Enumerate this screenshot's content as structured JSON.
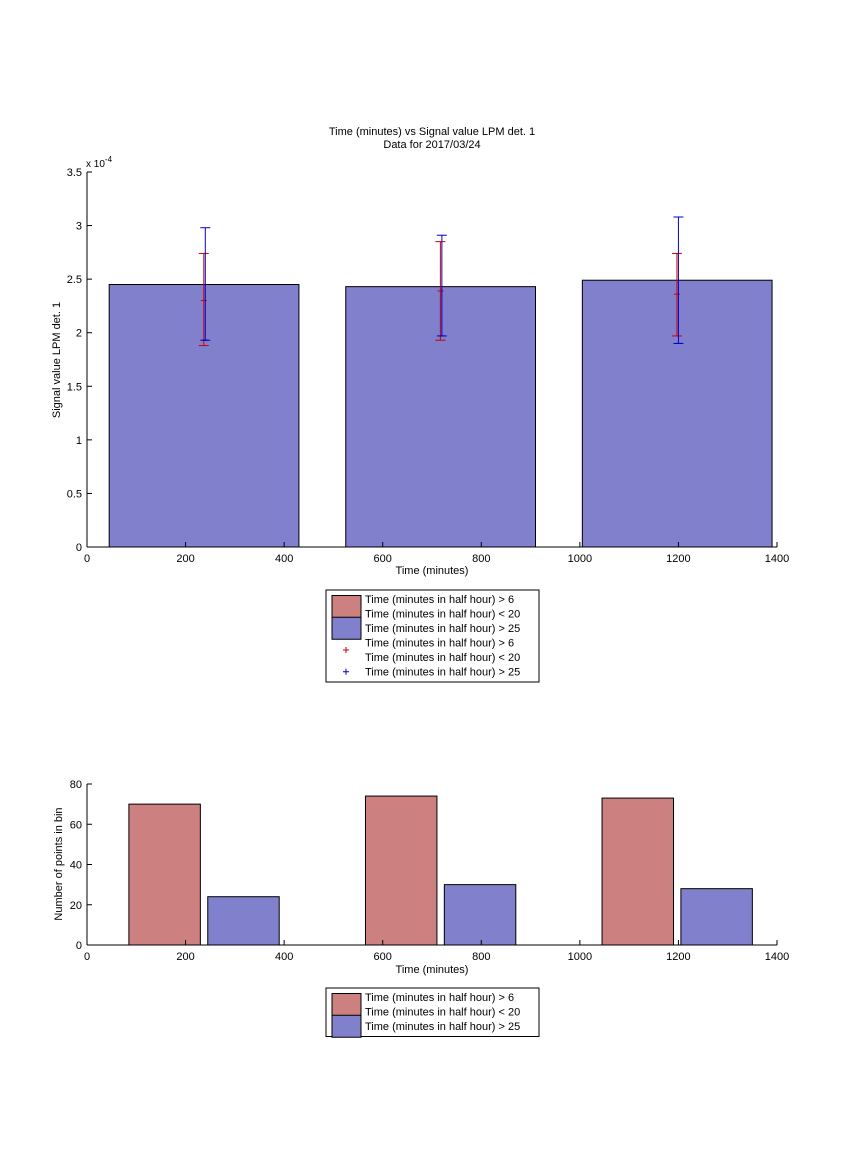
{
  "chart_data": [
    {
      "type": "bar",
      "title": "Time (minutes) vs Signal value LPM det. 1",
      "subtitle": "Data for 2017/03/24",
      "xlabel": "Time (minutes)",
      "ylabel": "Signal value LPM det. 1",
      "y_exponent_label": "x 10",
      "y_exponent_power": "-4",
      "xlim": [
        0,
        1400
      ],
      "ylim": [
        0,
        3.5
      ],
      "x_ticks": [
        0,
        200,
        400,
        600,
        800,
        1000,
        1200,
        1400
      ],
      "y_ticks": [
        0,
        0.5,
        1,
        1.5,
        2,
        2.5,
        3,
        3.5
      ],
      "y_tick_labels": [
        "0",
        "0.5",
        "1",
        "1.5",
        "2",
        "2.5",
        "3",
        "3.5"
      ],
      "bars": [
        {
          "x_start": 45,
          "x_end": 430,
          "value": 2.45
        },
        {
          "x_start": 525,
          "x_end": 910,
          "value": 2.43
        },
        {
          "x_start": 1005,
          "x_end": 1390,
          "value": 2.49
        }
      ],
      "bar_color": "#8080cc",
      "error_bars": [
        {
          "series": "red",
          "x": 237,
          "center": 2.3,
          "low": 1.88,
          "high": 2.74,
          "color": "#cc0000"
        },
        {
          "series": "blue",
          "x": 240,
          "center": 1.93,
          "low": 1.93,
          "high": 2.98,
          "color": "#0000cc"
        },
        {
          "series": "red",
          "x": 717,
          "center": 2.39,
          "low": 1.93,
          "high": 2.85,
          "color": "#cc0000"
        },
        {
          "series": "blue",
          "x": 720,
          "center": 1.97,
          "low": 1.97,
          "high": 2.91,
          "color": "#0000cc"
        },
        {
          "series": "red",
          "x": 1197,
          "center": 2.36,
          "low": 1.97,
          "high": 2.74,
          "color": "#cc0000"
        },
        {
          "series": "blue",
          "x": 1200,
          "center": 1.9,
          "low": 1.9,
          "high": 3.08,
          "color": "#0000cc"
        }
      ],
      "legend": {
        "placement": "below",
        "entries": [
          {
            "kind": "patch",
            "color": "#cc8080",
            "lines": [
              "Time (minutes in half hour) > 6",
              "Time (minutes in half hour) < 20"
            ]
          },
          {
            "kind": "patch",
            "color": "#8080cc",
            "lines": [
              "Time (minutes in half hour) > 25"
            ]
          },
          {
            "kind": "marker",
            "color": "#cc0000",
            "lines": [
              "Time (minutes in half hour) > 6",
              "Time (minutes in half hour) < 20"
            ]
          },
          {
            "kind": "marker",
            "color": "#0000cc",
            "lines": [
              "Time (minutes in half hour) > 25"
            ]
          }
        ]
      }
    },
    {
      "type": "bar",
      "xlabel": "Time (minutes)",
      "ylabel": "Number of points in bin",
      "xlim": [
        0,
        1400
      ],
      "ylim": [
        0,
        80
      ],
      "x_ticks": [
        0,
        200,
        400,
        600,
        800,
        1000,
        1200,
        1400
      ],
      "y_ticks": [
        0,
        20,
        40,
        60,
        80
      ],
      "y_tick_labels": [
        "0",
        "20",
        "40",
        "60",
        "80"
      ],
      "bars": [
        {
          "x_start": 85,
          "x_end": 230,
          "value": 70,
          "color": "#cc8080"
        },
        {
          "x_start": 245,
          "x_end": 390,
          "value": 24,
          "color": "#8080cc"
        },
        {
          "x_start": 565,
          "x_end": 710,
          "value": 74,
          "color": "#cc8080"
        },
        {
          "x_start": 725,
          "x_end": 870,
          "value": 30,
          "color": "#8080cc"
        },
        {
          "x_start": 1045,
          "x_end": 1190,
          "value": 73,
          "color": "#cc8080"
        },
        {
          "x_start": 1205,
          "x_end": 1350,
          "value": 28,
          "color": "#8080cc"
        }
      ],
      "legend": {
        "placement": "below",
        "entries": [
          {
            "kind": "patch",
            "color": "#cc8080",
            "lines": [
              "Time (minutes in half hour) > 6",
              "Time (minutes in half hour) < 20"
            ]
          },
          {
            "kind": "patch",
            "color": "#8080cc",
            "lines": [
              "Time (minutes in half hour) > 25"
            ]
          }
        ]
      }
    }
  ]
}
